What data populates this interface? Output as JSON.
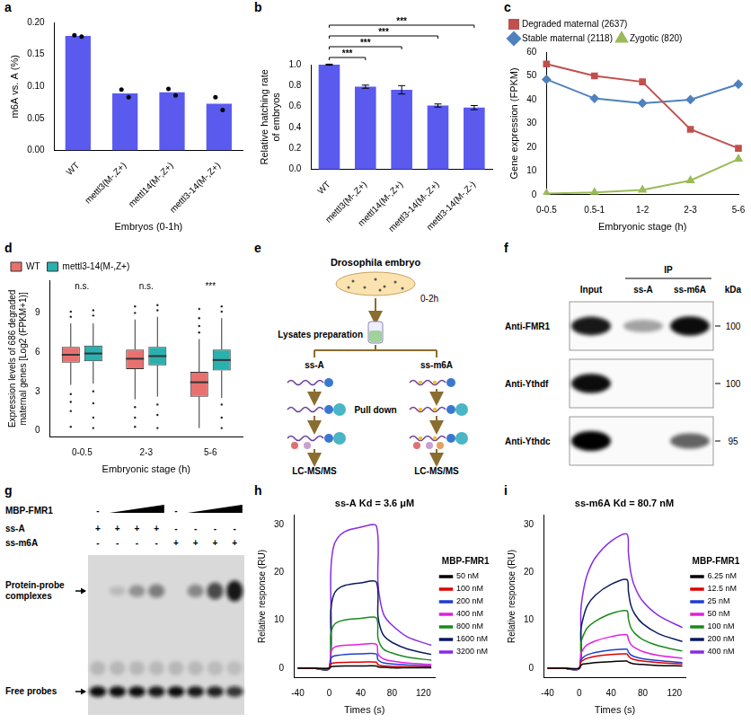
{
  "chart_data": [
    {
      "panel": "a",
      "type": "bar",
      "y_label": "m6A vs. A (%)",
      "x_label": "Embryos (0-1h)",
      "categories": [
        "WT",
        "mettl3(M-,Z+)",
        "mettl14(M-,Z+)",
        "mettl3-14(M-,Z+)"
      ],
      "values": [
        0.179,
        0.089,
        0.091,
        0.073
      ],
      "points": [
        [
          0.18,
          0.178
        ],
        [
          0.095,
          0.083
        ],
        [
          0.096,
          0.086
        ],
        [
          0.083,
          0.063
        ]
      ],
      "color": "#5a5aef",
      "ylim": [
        0,
        0.2
      ],
      "yticks": [
        {
          "value": 0,
          "label": "0.00"
        },
        {
          "value": 0.05,
          "label": "0.05"
        },
        {
          "value": 0.1,
          "label": "0.10"
        },
        {
          "value": 0.15,
          "label": "0.15"
        },
        {
          "value": 0.2,
          "label": "0.20"
        }
      ],
      "grid": false
    },
    {
      "panel": "b",
      "type": "bar",
      "y_label": "Relative hatching rate of embryos",
      "categories": [
        "WT",
        "mettl3(M-,Z+)",
        "mettl14(M-,Z+)",
        "mettl3-14(M-,Z+)",
        "mettl3-14(M-,Z-)"
      ],
      "values": [
        1.0,
        0.79,
        0.76,
        0.61,
        0.59
      ],
      "errors": [
        0.005,
        0.015,
        0.04,
        0.015,
        0.02
      ],
      "color": "#5a5aef",
      "ylim": [
        0,
        1
      ],
      "yticks": [
        {
          "value": 0,
          "label": "0.0"
        },
        {
          "value": 0.2,
          "label": "0.2"
        },
        {
          "value": 0.4,
          "label": "0.4"
        },
        {
          "value": 0.6,
          "label": "0.6"
        },
        {
          "value": 0.8,
          "label": "0.8"
        },
        {
          "value": 1,
          "label": "1.0"
        }
      ],
      "annotations": [
        {
          "from": "WT",
          "to": "mettl3(M-,Z+)",
          "label": "***"
        },
        {
          "from": "WT",
          "to": "mettl14(M-,Z+)",
          "label": "***"
        },
        {
          "from": "WT",
          "to": "mettl3-14(M-,Z+)",
          "label": "***"
        },
        {
          "from": "WT",
          "to": "mettl3-14(M-,Z-)",
          "label": "***"
        }
      ],
      "grid": false
    },
    {
      "panel": "c",
      "type": "line",
      "y_label": "Gene expression (FPKM)",
      "x_label": "Embryonic stage (h)",
      "categories": [
        "0-0.5",
        "0.5-1",
        "1-2",
        "2-3",
        "5-6"
      ],
      "series": [
        {
          "name": "Degraded maternal (2637)",
          "color": "#c0504d",
          "marker": "square",
          "values": [
            55,
            50,
            47.5,
            27.5,
            19.5
          ]
        },
        {
          "name": "Stable maternal (2118)",
          "color": "#4f81bd",
          "marker": "diamond",
          "values": [
            48.5,
            40.5,
            38.5,
            40,
            46.5
          ]
        },
        {
          "name": "Zygotic (820)",
          "color": "#9bbb59",
          "marker": "triangle",
          "values": [
            0.5,
            1,
            2,
            6,
            15
          ]
        }
      ],
      "ylim": [
        0,
        60
      ],
      "yticks": [
        0,
        10,
        20,
        30,
        40,
        50,
        60
      ],
      "legend": "top",
      "grid": false
    },
    {
      "panel": "d",
      "type": "box",
      "y_label": "Expression levels of 686 degraded maternal genes [Log2 (FPKM+1)]",
      "x_label": "Embryonic stage (h)",
      "categories": [
        "0-0.5",
        "2-3",
        "5-6"
      ],
      "series": [
        {
          "name": "WT",
          "color": "#e8716f",
          "boxes": [
            {
              "min": 3.5,
              "q1": 5.2,
              "median": 5.8,
              "q3": 6.4,
              "max": 8.2,
              "outliers": [
                2.8,
                2.2,
                1.5,
                0.3,
                8.7,
                9.1
              ]
            },
            {
              "min": 2.4,
              "q1": 4.7,
              "median": 5.5,
              "q3": 6.2,
              "max": 8.5,
              "outliers": [
                1.8,
                1,
                0.3,
                9,
                9.5
              ]
            },
            {
              "min": 0.2,
              "q1": 2.6,
              "median": 3.7,
              "q3": 4.5,
              "max": 7.0,
              "outliers": [
                7.5,
                8,
                8.6,
                9.3
              ]
            }
          ]
        },
        {
          "name": "mettl3-14(M-,Z+)",
          "color": "#2ab0ae",
          "boxes": [
            {
              "min": 3.6,
              "q1": 5.3,
              "median": 5.9,
              "q3": 6.5,
              "max": 8.2,
              "outliers": [
                3,
                2.1,
                1,
                0.2,
                8.8,
                9.2
              ]
            },
            {
              "min": 2.6,
              "q1": 5.0,
              "median": 5.7,
              "q3": 6.4,
              "max": 8.7,
              "outliers": [
                2,
                1.2,
                0.2,
                9.2,
                9.6
              ]
            },
            {
              "min": 2.5,
              "q1": 4.6,
              "median": 5.4,
              "q3": 6.2,
              "max": 8.6,
              "outliers": [
                2,
                1,
                0.2,
                9.1,
                9.5
              ]
            }
          ]
        }
      ],
      "annotations": [
        "n.s.",
        "n.s.",
        "***"
      ],
      "ylim": [
        -0.5,
        11.5
      ],
      "yticks": [
        0,
        3,
        6,
        9
      ],
      "legend": "top",
      "grid": false
    },
    {
      "panel": "h",
      "type": "line",
      "title": "ss-A Kd = 3.6 μM",
      "legend_title": "MBP-FMR1",
      "x_label": "Times (s)",
      "y_label": "Relative response (RU)",
      "x": [
        -40,
        -20,
        0,
        2,
        5,
        10,
        20,
        40,
        60,
        62,
        65,
        70,
        80,
        100,
        130
      ],
      "series": [
        {
          "name": "50 nM",
          "color": "#000000",
          "values": [
            0,
            0,
            0,
            0.3,
            0.4,
            0.45,
            0.5,
            0.5,
            0.5,
            0.3,
            0.2,
            0.2,
            0.1,
            0.1,
            0.1
          ]
        },
        {
          "name": "100 nM",
          "color": "#e00000",
          "values": [
            0,
            0,
            0,
            0.9,
            1.1,
            1.2,
            1.25,
            1.3,
            1.3,
            0.8,
            0.6,
            0.5,
            0.4,
            0.3,
            0.2
          ]
        },
        {
          "name": "200 nM",
          "color": "#1f3fd0",
          "values": [
            0,
            0,
            0,
            2,
            2.5,
            2.7,
            2.9,
            3,
            3,
            1.8,
            1.4,
            1.1,
            0.9,
            0.7,
            0.5
          ]
        },
        {
          "name": "400 nM",
          "color": "#e020e0",
          "values": [
            0,
            0,
            0,
            3.4,
            4.2,
            4.6,
            4.8,
            5,
            5,
            3,
            2.4,
            1.9,
            1.5,
            1.1,
            0.8
          ]
        },
        {
          "name": "800 nM",
          "color": "#1a8a1a",
          "values": [
            0,
            0,
            0,
            7,
            8.8,
            9.6,
            10.1,
            10.4,
            10.5,
            6.4,
            4.9,
            3.9,
            3.2,
            2.3,
            1.7
          ]
        },
        {
          "name": "1600 nM",
          "color": "#0a1a60",
          "values": [
            0,
            0,
            0,
            12,
            15,
            16.4,
            17.3,
            17.8,
            18,
            11,
            8.5,
            6.7,
            5.4,
            4,
            2.9
          ]
        },
        {
          "name": "3200 nM",
          "color": "#8a2be2",
          "values": [
            0,
            0,
            0,
            20,
            25,
            27,
            28.5,
            29.4,
            29.7,
            18,
            14,
            11,
            9,
            6.5,
            4.8
          ]
        }
      ],
      "xlim": [
        -45,
        135
      ],
      "xticks": [
        -40,
        0,
        40,
        80,
        120
      ],
      "ylim": [
        -2,
        32
      ],
      "yticks": [
        0,
        10,
        20,
        30
      ],
      "legend": "right",
      "grid": false
    },
    {
      "panel": "i",
      "type": "line",
      "title": "ss-m6A Kd = 80.7 nM",
      "legend_title": "MBP-FMR1",
      "x_label": "Times (s)",
      "y_label": "Relative response (RU)",
      "x": [
        -40,
        -20,
        0,
        2,
        5,
        10,
        20,
        40,
        60,
        62,
        65,
        70,
        80,
        100,
        130
      ],
      "series": [
        {
          "name": "6.25 nM",
          "color": "#000000",
          "values": [
            0,
            0,
            0,
            0.6,
            0.9,
            1,
            1.2,
            1.4,
            1.5,
            1.3,
            1.1,
            0.9,
            0.8,
            0.6,
            0.5
          ]
        },
        {
          "name": "12.5 nM",
          "color": "#e00000",
          "values": [
            0,
            0,
            0,
            1.3,
            1.7,
            2.1,
            2.5,
            2.9,
            3,
            2.6,
            2.1,
            1.8,
            1.5,
            1.2,
            0.9
          ]
        },
        {
          "name": "25 nM",
          "color": "#1f3fd0",
          "values": [
            0,
            0,
            0,
            1.7,
            2.3,
            2.8,
            3.3,
            3.8,
            4,
            3.4,
            2.8,
            2.4,
            2,
            1.6,
            1.2
          ]
        },
        {
          "name": "50 nM",
          "color": "#e020e0",
          "values": [
            0,
            0,
            0,
            3,
            4,
            4.9,
            5.7,
            6.6,
            7,
            6,
            5,
            4.3,
            3.5,
            2.7,
            2.1
          ]
        },
        {
          "name": "100 nM",
          "color": "#1a8a1a",
          "values": [
            0,
            0,
            0,
            5.2,
            6.8,
            8.4,
            9.8,
            11.4,
            12,
            10.3,
            8.5,
            7.3,
            6,
            4.7,
            3.6
          ]
        },
        {
          "name": "200 nM",
          "color": "#0a1a60",
          "values": [
            0,
            0,
            0,
            8,
            10.5,
            13,
            15.2,
            17.5,
            18.5,
            16,
            13.2,
            11.3,
            9.3,
            7.2,
            5.6
          ]
        },
        {
          "name": "400 nM",
          "color": "#8a2be2",
          "values": [
            0,
            0,
            0,
            12,
            16,
            19.5,
            23,
            26.5,
            28,
            24,
            20,
            17,
            14,
            11,
            8.5
          ]
        }
      ],
      "xlim": [
        -45,
        135
      ],
      "xticks": [
        -40,
        0,
        40,
        80,
        120
      ],
      "ylim": [
        -2,
        32
      ],
      "yticks": [
        0,
        10,
        20,
        30
      ],
      "legend": "right",
      "grid": false
    }
  ],
  "diagram_e": {
    "panel": "e",
    "title": "Drosophila embryo",
    "stage": "0-2h",
    "step": "Lysates preparation",
    "step2": "Pull down",
    "branches": [
      {
        "probe": "ss-A",
        "output": "LC-MS/MS"
      },
      {
        "probe": "ss-m6A",
        "output": "LC-MS/MS"
      }
    ]
  },
  "blot_f": {
    "panel": "f",
    "group_label": "IP",
    "columns": [
      "Input",
      "ss-A",
      "ss-m6A"
    ],
    "group_columns": [
      "ss-A",
      "ss-m6A"
    ],
    "unit": "kDa",
    "rows": [
      {
        "label": "Anti-FMR1",
        "kda": 100,
        "bands": [
          0.9,
          0.35,
          0.95
        ]
      },
      {
        "label": "Anti-Ythdf",
        "kda": 100,
        "bands": [
          0.95,
          0,
          0
        ]
      },
      {
        "label": "Anti-Ythdc",
        "kda": 95,
        "bands": [
          1,
          0,
          0.6
        ]
      }
    ]
  },
  "gel_g": {
    "panel": "g",
    "protein": {
      "label": "MBP-FMR1",
      "marks": [
        "-",
        null,
        null,
        null,
        "-",
        null,
        null,
        null
      ]
    },
    "probes": [
      {
        "label": "ss-A",
        "marks": [
          "+",
          "+",
          "+",
          "+",
          "-",
          "-",
          "-",
          "-"
        ]
      },
      {
        "label": "ss-m6A",
        "marks": [
          "-",
          "-",
          "-",
          "-",
          "+",
          "+",
          "+",
          "+"
        ]
      }
    ],
    "band_labels": [
      "Protein-probe complexes",
      "Free probes"
    ],
    "complex_bands": [
      0,
      0.15,
      0.35,
      0.45,
      0,
      0.4,
      0.7,
      0.95
    ],
    "free_bands": [
      1,
      1,
      1,
      0.95,
      1,
      0.95,
      0.9,
      0.8
    ]
  }
}
